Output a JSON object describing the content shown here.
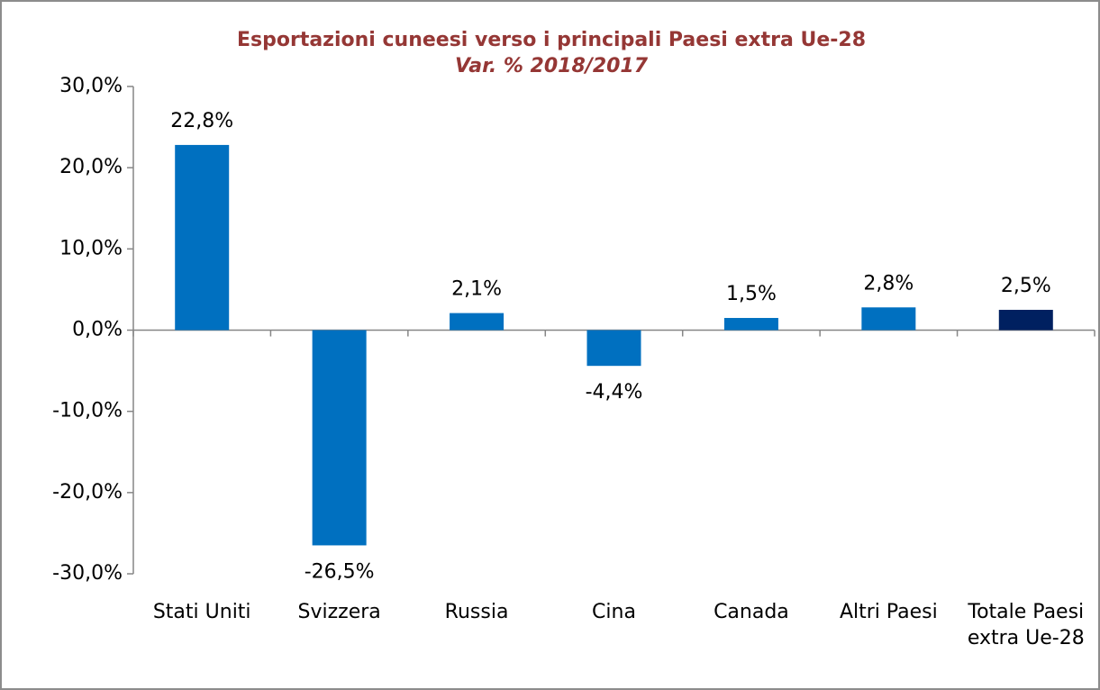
{
  "chart_data": {
    "type": "bar",
    "title": "Esportazioni cuneesi verso i principali Paesi extra Ue-28",
    "subtitle": "Var. % 2018/2017",
    "categories": [
      "Stati Uniti",
      "Svizzera",
      "Russia",
      "Cina",
      "Canada",
      "Altri Paesi",
      "Totale Paesi extra Ue-28"
    ],
    "values": [
      22.8,
      -26.5,
      2.1,
      -4.4,
      1.5,
      2.8,
      2.5
    ],
    "value_labels": [
      "22,8%",
      "-26,5%",
      "2,1%",
      "-4,4%",
      "1,5%",
      "2,8%",
      "2,5%"
    ],
    "colors": [
      "#0070c0",
      "#0070c0",
      "#0070c0",
      "#0070c0",
      "#0070c0",
      "#0070c0",
      "#002060"
    ],
    "ylim": [
      -30,
      30
    ],
    "yticks": [
      {
        "value": -30,
        "label": "-30,0%"
      },
      {
        "value": -20,
        "label": "-20,0%"
      },
      {
        "value": -10,
        "label": "-10,0%"
      },
      {
        "value": 0,
        "label": "0,0%"
      },
      {
        "value": 10,
        "label": "10,0%"
      },
      {
        "value": 20,
        "label": "20,0%"
      },
      {
        "value": 30,
        "label": "30,0%"
      }
    ],
    "grid": false
  }
}
